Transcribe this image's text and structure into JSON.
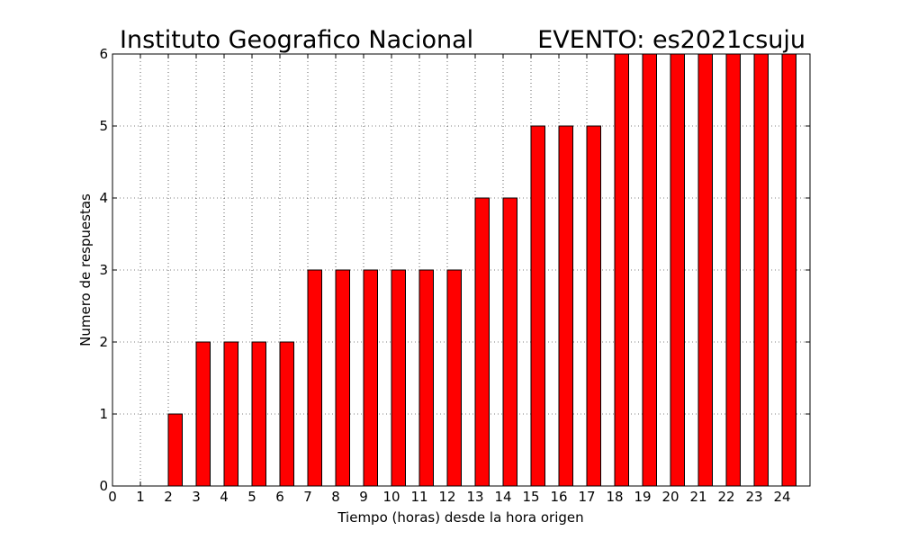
{
  "titles": {
    "left": "Instituto Geografico Nacional",
    "right": "EVENTO: es2021csuju"
  },
  "chart_data": {
    "type": "bar",
    "x": [
      1,
      2,
      3,
      4,
      5,
      6,
      7,
      8,
      9,
      10,
      11,
      12,
      13,
      14,
      15,
      16,
      17,
      18,
      19,
      20,
      21,
      22,
      23,
      24
    ],
    "values": [
      0,
      1,
      2,
      2,
      2,
      2,
      3,
      3,
      3,
      3,
      3,
      3,
      4,
      4,
      5,
      5,
      5,
      6,
      6,
      6,
      6,
      6,
      6,
      6
    ],
    "xticks": [
      0,
      1,
      2,
      3,
      4,
      5,
      6,
      7,
      8,
      9,
      10,
      11,
      12,
      13,
      14,
      15,
      16,
      17,
      18,
      19,
      20,
      21,
      22,
      23,
      24
    ],
    "yticks": [
      0,
      1,
      2,
      3,
      4,
      5,
      6
    ],
    "xlim": [
      0,
      25
    ],
    "ylim": [
      0,
      6
    ],
    "bar_width": 0.5,
    "xlabel": "Tiempo (horas) desde la hora origen",
    "ylabel": "Numero de respuestas",
    "grid": true,
    "bar_color": "#ff0000",
    "edge_color": "#000000"
  }
}
